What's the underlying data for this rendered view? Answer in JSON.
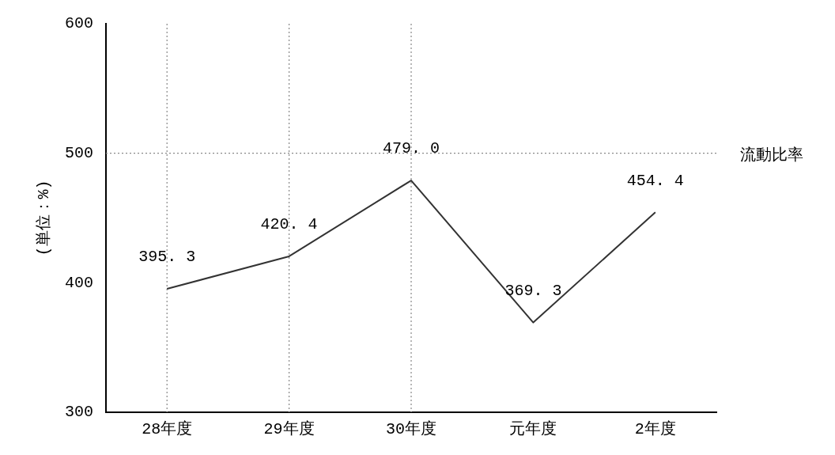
{
  "chart_data": {
    "type": "line",
    "ylabel": "(単位：%)",
    "categories": [
      "28年度",
      "29年度",
      "30年度",
      "元年度",
      "2年度"
    ],
    "series": [
      {
        "name": "流動比率",
        "color": "#333333",
        "values": [
          395.3,
          420.4,
          479.0,
          369.3,
          454.4
        ],
        "value_labels": [
          "395. 3",
          "420. 4",
          "479. 0",
          "369. 3",
          "454. 4"
        ]
      }
    ],
    "ylim": [
      300,
      600
    ],
    "yticks": [
      300,
      400,
      500,
      600
    ],
    "legend": "right",
    "marker": "none",
    "line_style": "solid",
    "ref_lines": [
      {
        "axis": "y",
        "value": 500,
        "label": null,
        "color": "#888888",
        "line_style": "dotted"
      },
      {
        "axis": "x",
        "value": "28年度",
        "label": null,
        "color": "#888888",
        "line_style": "dotted"
      },
      {
        "axis": "x",
        "value": "29年度",
        "label": null,
        "color": "#888888",
        "line_style": "dotted"
      },
      {
        "axis": "x",
        "value": "30年度",
        "label": null,
        "color": "#888888",
        "line_style": "dotted"
      }
    ]
  }
}
